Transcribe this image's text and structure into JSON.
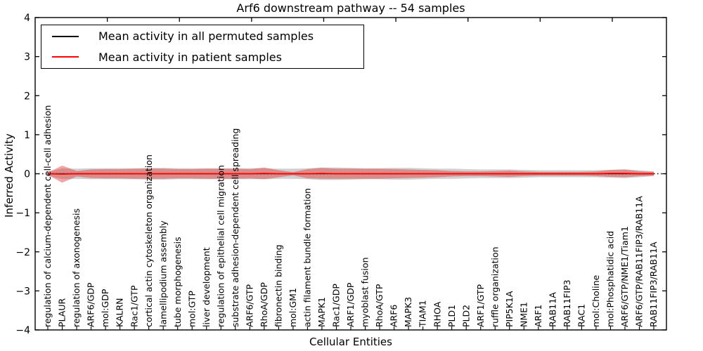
{
  "figure": {
    "title": "Arf6 downstream pathway -- 54 samples",
    "x_axis_title": "Cellular Entities",
    "y_axis_title": "Inferred Activity"
  },
  "legend": {
    "entries": [
      {
        "label": "Mean activity in all permuted samples",
        "color": "#000000"
      },
      {
        "label": "Mean activity in patient samples",
        "color": "#ff0000"
      }
    ]
  },
  "axes": {
    "y_tick_labels": [
      "4",
      "3",
      "2",
      "1",
      "0",
      "−1",
      "−2",
      "−3",
      "−4"
    ],
    "y_tick_values": [
      4,
      3,
      2,
      1,
      0,
      -1,
      -2,
      -3,
      -4
    ]
  },
  "colors": {
    "permuted_line": "#000000",
    "patient_line": "#ff0000",
    "permuted_band": "#c8c8c8",
    "patient_band": "#e53935",
    "zero_line": "#000000"
  },
  "chart_data": {
    "type": "area",
    "title": "Arf6 downstream pathway -- 54 samples",
    "xlabel": "Cellular Entities",
    "ylabel": "Inferred Activity",
    "ylim": [
      -4,
      4
    ],
    "grid": false,
    "legend_position": "upper left",
    "zero_line": true,
    "categories": [
      "regulation of calcium-dependent cell-cell adhesion",
      "PLAUR",
      "regulation of axonogenesis",
      "ARF6/GDP",
      "mol:GDP",
      "KALRN",
      "Rac1/GTP",
      "cortical actin cytoskeleton organization",
      "lamellipodium assembly",
      "tube morphogenesis",
      "mol:GTP",
      "liver development",
      "regulation of epithelial cell migration",
      "substrate adhesion-dependent cell spreading",
      "ARF6/GTP",
      "RhoA/GDP",
      "fibronectin binding",
      "mol:GM1",
      "actin filament bundle formation",
      "MAPK1",
      "Rac1/GDP",
      "ARF1/GDP",
      "myoblast fusion",
      "RhoA/GTP",
      "ARF6",
      "MAPK3",
      "TIAM1",
      "RHOA",
      "PLD1",
      "PLD2",
      "ARF1/GTP",
      "ruffle organization",
      "PIP5K1A",
      "NME1",
      "ARF1",
      "RAB11A",
      "RAB11FIP3",
      "RAC1",
      "mol:Choline",
      "mol:Phosphatidic acid",
      "ARF6/GTP/NME1/Tiam1",
      "ARF6/GTP/RAB11FIP3/RAB11A",
      "RAB11FIP3/RAB11A"
    ],
    "series": [
      {
        "name": "Mean activity in all permuted samples",
        "color": "#000000",
        "mean": [
          0,
          0,
          0,
          0,
          0,
          0,
          0,
          0,
          0,
          0,
          0,
          0,
          0,
          0,
          0,
          0,
          0,
          0,
          0,
          0,
          0,
          0,
          0,
          0,
          0,
          0,
          0,
          0,
          0,
          0,
          0,
          0,
          0,
          0,
          0,
          0,
          0,
          0,
          0,
          0,
          0,
          0,
          0
        ],
        "std": [
          0.05,
          0.14,
          0.13,
          0.14,
          0.14,
          0.14,
          0.14,
          0.15,
          0.15,
          0.14,
          0.14,
          0.14,
          0.14,
          0.14,
          0.14,
          0.14,
          0.13,
          0.13,
          0.14,
          0.16,
          0.16,
          0.15,
          0.14,
          0.14,
          0.15,
          0.15,
          0.14,
          0.13,
          0.13,
          0.12,
          0.11,
          0.11,
          0.11,
          0.1,
          0.09,
          0.09,
          0.09,
          0.09,
          0.09,
          0.1,
          0.11,
          0.09,
          0.06
        ]
      },
      {
        "name": "Mean activity in patient samples",
        "color": "#ff0000",
        "mean": [
          0,
          -0.01,
          0,
          0,
          0,
          0,
          0,
          0,
          0,
          0,
          0,
          0,
          0,
          0,
          0,
          0.01,
          0,
          0,
          0,
          0.01,
          0,
          0,
          0,
          0,
          0,
          0,
          0,
          0,
          0,
          0,
          0,
          0,
          0,
          0,
          0,
          0,
          0,
          0,
          0,
          0.01,
          0.01,
          0,
          0
        ],
        "std": [
          0.03,
          0.22,
          0.07,
          0.11,
          0.12,
          0.12,
          0.13,
          0.13,
          0.13,
          0.12,
          0.12,
          0.13,
          0.13,
          0.13,
          0.12,
          0.15,
          0.09,
          0.04,
          0.12,
          0.14,
          0.13,
          0.13,
          0.13,
          0.13,
          0.12,
          0.11,
          0.1,
          0.09,
          0.07,
          0.06,
          0.06,
          0.07,
          0.08,
          0.06,
          0.05,
          0.05,
          0.05,
          0.05,
          0.06,
          0.09,
          0.1,
          0.06,
          0.05
        ]
      }
    ]
  }
}
